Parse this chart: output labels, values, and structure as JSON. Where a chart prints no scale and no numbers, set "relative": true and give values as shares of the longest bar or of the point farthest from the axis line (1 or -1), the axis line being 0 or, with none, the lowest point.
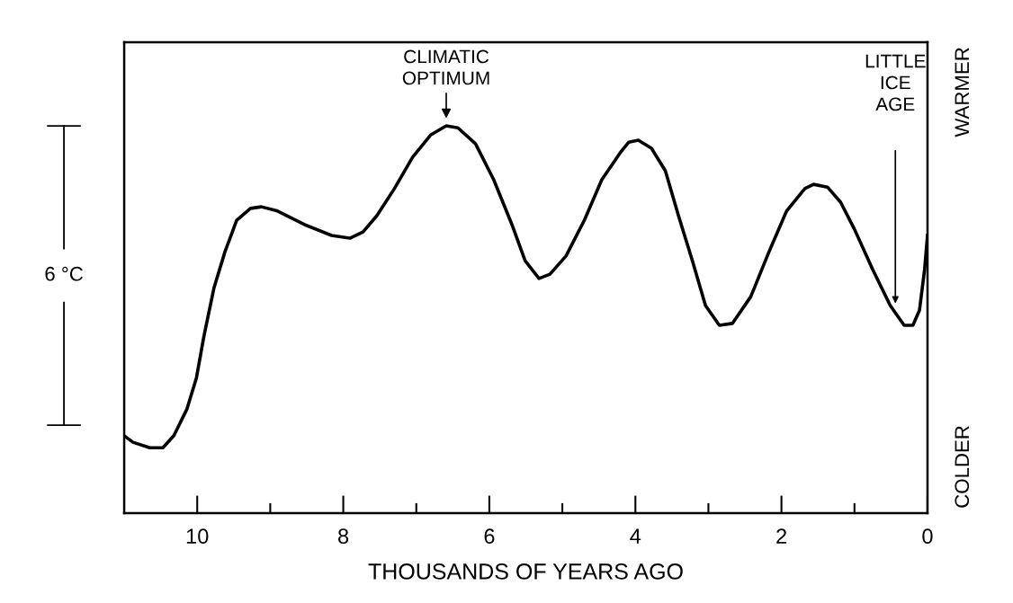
{
  "chart_data": {
    "type": "line",
    "relative": true,
    "xlabel": "THOUSANDS OF YEARS AGO",
    "xlim": [
      11,
      0
    ],
    "xticks": [
      10,
      {
        "value": 9,
        "label": null
      },
      8,
      {
        "value": 7,
        "label": null
      },
      6,
      {
        "value": 5,
        "label": null
      },
      4,
      {
        "value": 3,
        "label": null
      },
      2,
      {
        "value": 1,
        "label": null
      },
      0
    ],
    "x": [
      11.0,
      10.88,
      10.65,
      10.47,
      10.32,
      10.14,
      10.01,
      9.91,
      9.77,
      9.62,
      9.46,
      9.27,
      9.12,
      8.9,
      8.53,
      8.16,
      7.91,
      7.73,
      7.54,
      7.3,
      7.05,
      6.8,
      6.59,
      6.43,
      6.19,
      5.94,
      5.69,
      5.51,
      5.32,
      5.17,
      4.95,
      4.7,
      4.46,
      4.21,
      4.09,
      3.96,
      3.78,
      3.59,
      3.41,
      3.22,
      3.04,
      2.85,
      2.67,
      2.42,
      2.17,
      1.93,
      1.68,
      1.56,
      1.37,
      1.19,
      1.0,
      0.75,
      0.51,
      0.32,
      0.2,
      0.11,
      0.04,
      0.0
    ],
    "series": [
      {
        "color": "#000000",
        "values": [
          0.2,
          0.183,
          0.169,
          0.169,
          0.2,
          0.269,
          0.35,
          0.455,
          0.582,
          0.675,
          0.756,
          0.787,
          0.791,
          0.78,
          0.745,
          0.717,
          0.71,
          0.726,
          0.768,
          0.838,
          0.919,
          0.977,
          1.0,
          0.995,
          0.954,
          0.861,
          0.745,
          0.652,
          0.606,
          0.617,
          0.664,
          0.756,
          0.861,
          0.93,
          0.958,
          0.963,
          0.942,
          0.884,
          0.768,
          0.652,
          0.536,
          0.485,
          0.49,
          0.559,
          0.675,
          0.78,
          0.838,
          0.849,
          0.842,
          0.803,
          0.733,
          0.629,
          0.536,
          0.485,
          0.485,
          0.524,
          0.629,
          0.717
        ]
      }
    ],
    "annotations": [
      {
        "text": "CLIMATIC\nOPTIMUM",
        "x": 6.59,
        "y": 1.0
      },
      "LITTLE\nICE\nAGE",
      "6 °C",
      "WARMER",
      "COLDER"
    ],
    "grid": false,
    "legend": false,
    "marker": "none",
    "line_style": "solid"
  }
}
